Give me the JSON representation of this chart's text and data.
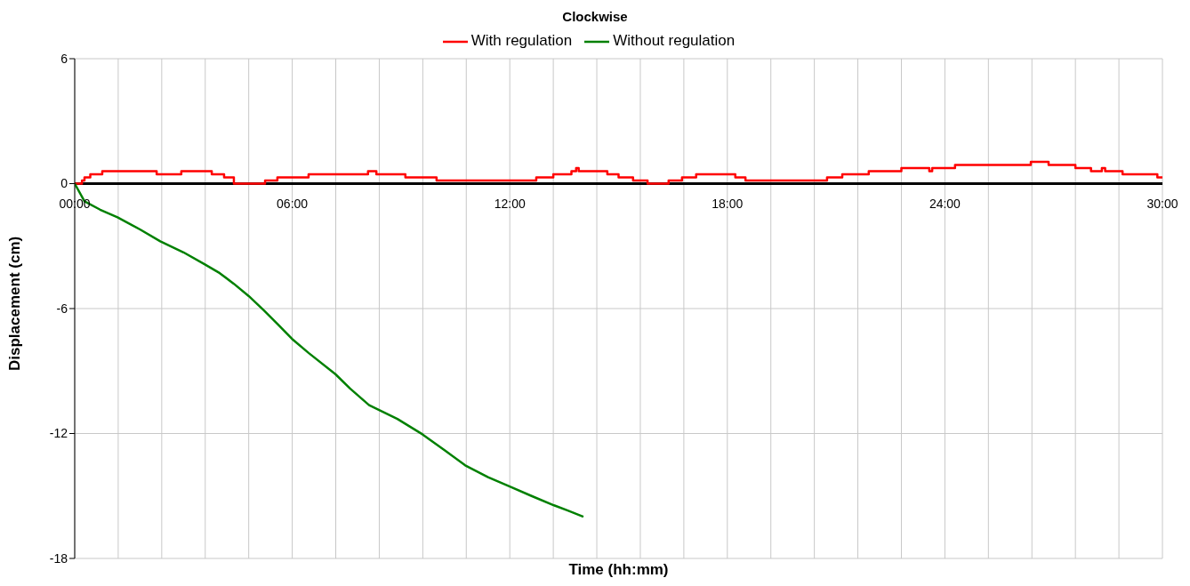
{
  "chart_data": {
    "type": "line",
    "title": "Clockwise",
    "xlabel": "Time (hh:mm)",
    "ylabel": "Displacement (cm)",
    "xlim": [
      0,
      30
    ],
    "xticks": [
      {
        "value": 0,
        "label": "00:00"
      },
      {
        "value": 1.2,
        "label": null
      },
      {
        "value": 2.4,
        "label": null
      },
      {
        "value": 3.6,
        "label": null
      },
      {
        "value": 4.8,
        "label": null
      },
      {
        "value": 6,
        "label": "06:00"
      },
      {
        "value": 7.2,
        "label": null
      },
      {
        "value": 8.4,
        "label": null
      },
      {
        "value": 9.6,
        "label": null
      },
      {
        "value": 10.8,
        "label": null
      },
      {
        "value": 12,
        "label": "12:00"
      },
      {
        "value": 13.2,
        "label": null
      },
      {
        "value": 14.4,
        "label": null
      },
      {
        "value": 15.6,
        "label": null
      },
      {
        "value": 16.8,
        "label": null
      },
      {
        "value": 18,
        "label": "18:00"
      },
      {
        "value": 19.2,
        "label": null
      },
      {
        "value": 20.4,
        "label": null
      },
      {
        "value": 21.6,
        "label": null
      },
      {
        "value": 22.8,
        "label": null
      },
      {
        "value": 24,
        "label": "24:00"
      },
      {
        "value": 25.2,
        "label": null
      },
      {
        "value": 26.4,
        "label": null
      },
      {
        "value": 27.6,
        "label": null
      },
      {
        "value": 28.8,
        "label": null
      },
      {
        "value": 30,
        "label": "30:00"
      }
    ],
    "ylim": [
      -18,
      6
    ],
    "yticks": [
      -18,
      -12,
      -6,
      0,
      6
    ],
    "grid": true,
    "legend": "top",
    "line_style": "solid",
    "marker": "none",
    "series": [
      {
        "name": "With regulation",
        "color": "#ff0000",
        "type": "step",
        "x": [
          0,
          0.2,
          0.27,
          0.43,
          0.76,
          2.26,
          2.94,
          3.78,
          4.12,
          4.39,
          5.25,
          5.59,
          6.45,
          8.09,
          8.32,
          9.12,
          9.98,
          12.73,
          13.2,
          13.7,
          13.83,
          13.9,
          14.69,
          15.0,
          15.4,
          15.8,
          16.38,
          16.75,
          17.14,
          18.22,
          18.5,
          20.75,
          21.17,
          21.9,
          22.8,
          23.57,
          23.65,
          24.28,
          26.37,
          26.86,
          27.6,
          28.03,
          28.33,
          28.42,
          28.9,
          29.86,
          30
        ],
        "values": [
          0,
          0.15,
          0.3,
          0.45,
          0.6,
          0.45,
          0.6,
          0.45,
          0.3,
          0,
          0.15,
          0.3,
          0.45,
          0.6,
          0.45,
          0.3,
          0.15,
          0.3,
          0.45,
          0.6,
          0.75,
          0.6,
          0.45,
          0.3,
          0.15,
          0,
          0.15,
          0.3,
          0.45,
          0.3,
          0.15,
          0.3,
          0.45,
          0.6,
          0.75,
          0.6,
          0.75,
          0.9,
          1.05,
          0.9,
          0.75,
          0.6,
          0.75,
          0.6,
          0.45,
          0.3,
          0.3
        ]
      },
      {
        "name": "Without regulation",
        "color": "#008000",
        "x": [
          0,
          0.27,
          0.7,
          1.18,
          1.8,
          2.36,
          3.0,
          3.58,
          4.0,
          4.39,
          4.8,
          5.22,
          5.6,
          5.99,
          6.45,
          7.19,
          7.6,
          8.12,
          8.9,
          9.59,
          10.2,
          10.77,
          11.4,
          12.0,
          12.6,
          13.22,
          13.6,
          14.03
        ],
        "values": [
          0,
          -0.85,
          -1.25,
          -1.62,
          -2.2,
          -2.77,
          -3.3,
          -3.87,
          -4.3,
          -4.81,
          -5.4,
          -6.09,
          -6.75,
          -7.45,
          -8.13,
          -9.15,
          -9.85,
          -10.64,
          -11.3,
          -12.04,
          -12.8,
          -13.53,
          -14.1,
          -14.55,
          -15.0,
          -15.45,
          -15.7,
          -16.0
        ]
      }
    ]
  }
}
